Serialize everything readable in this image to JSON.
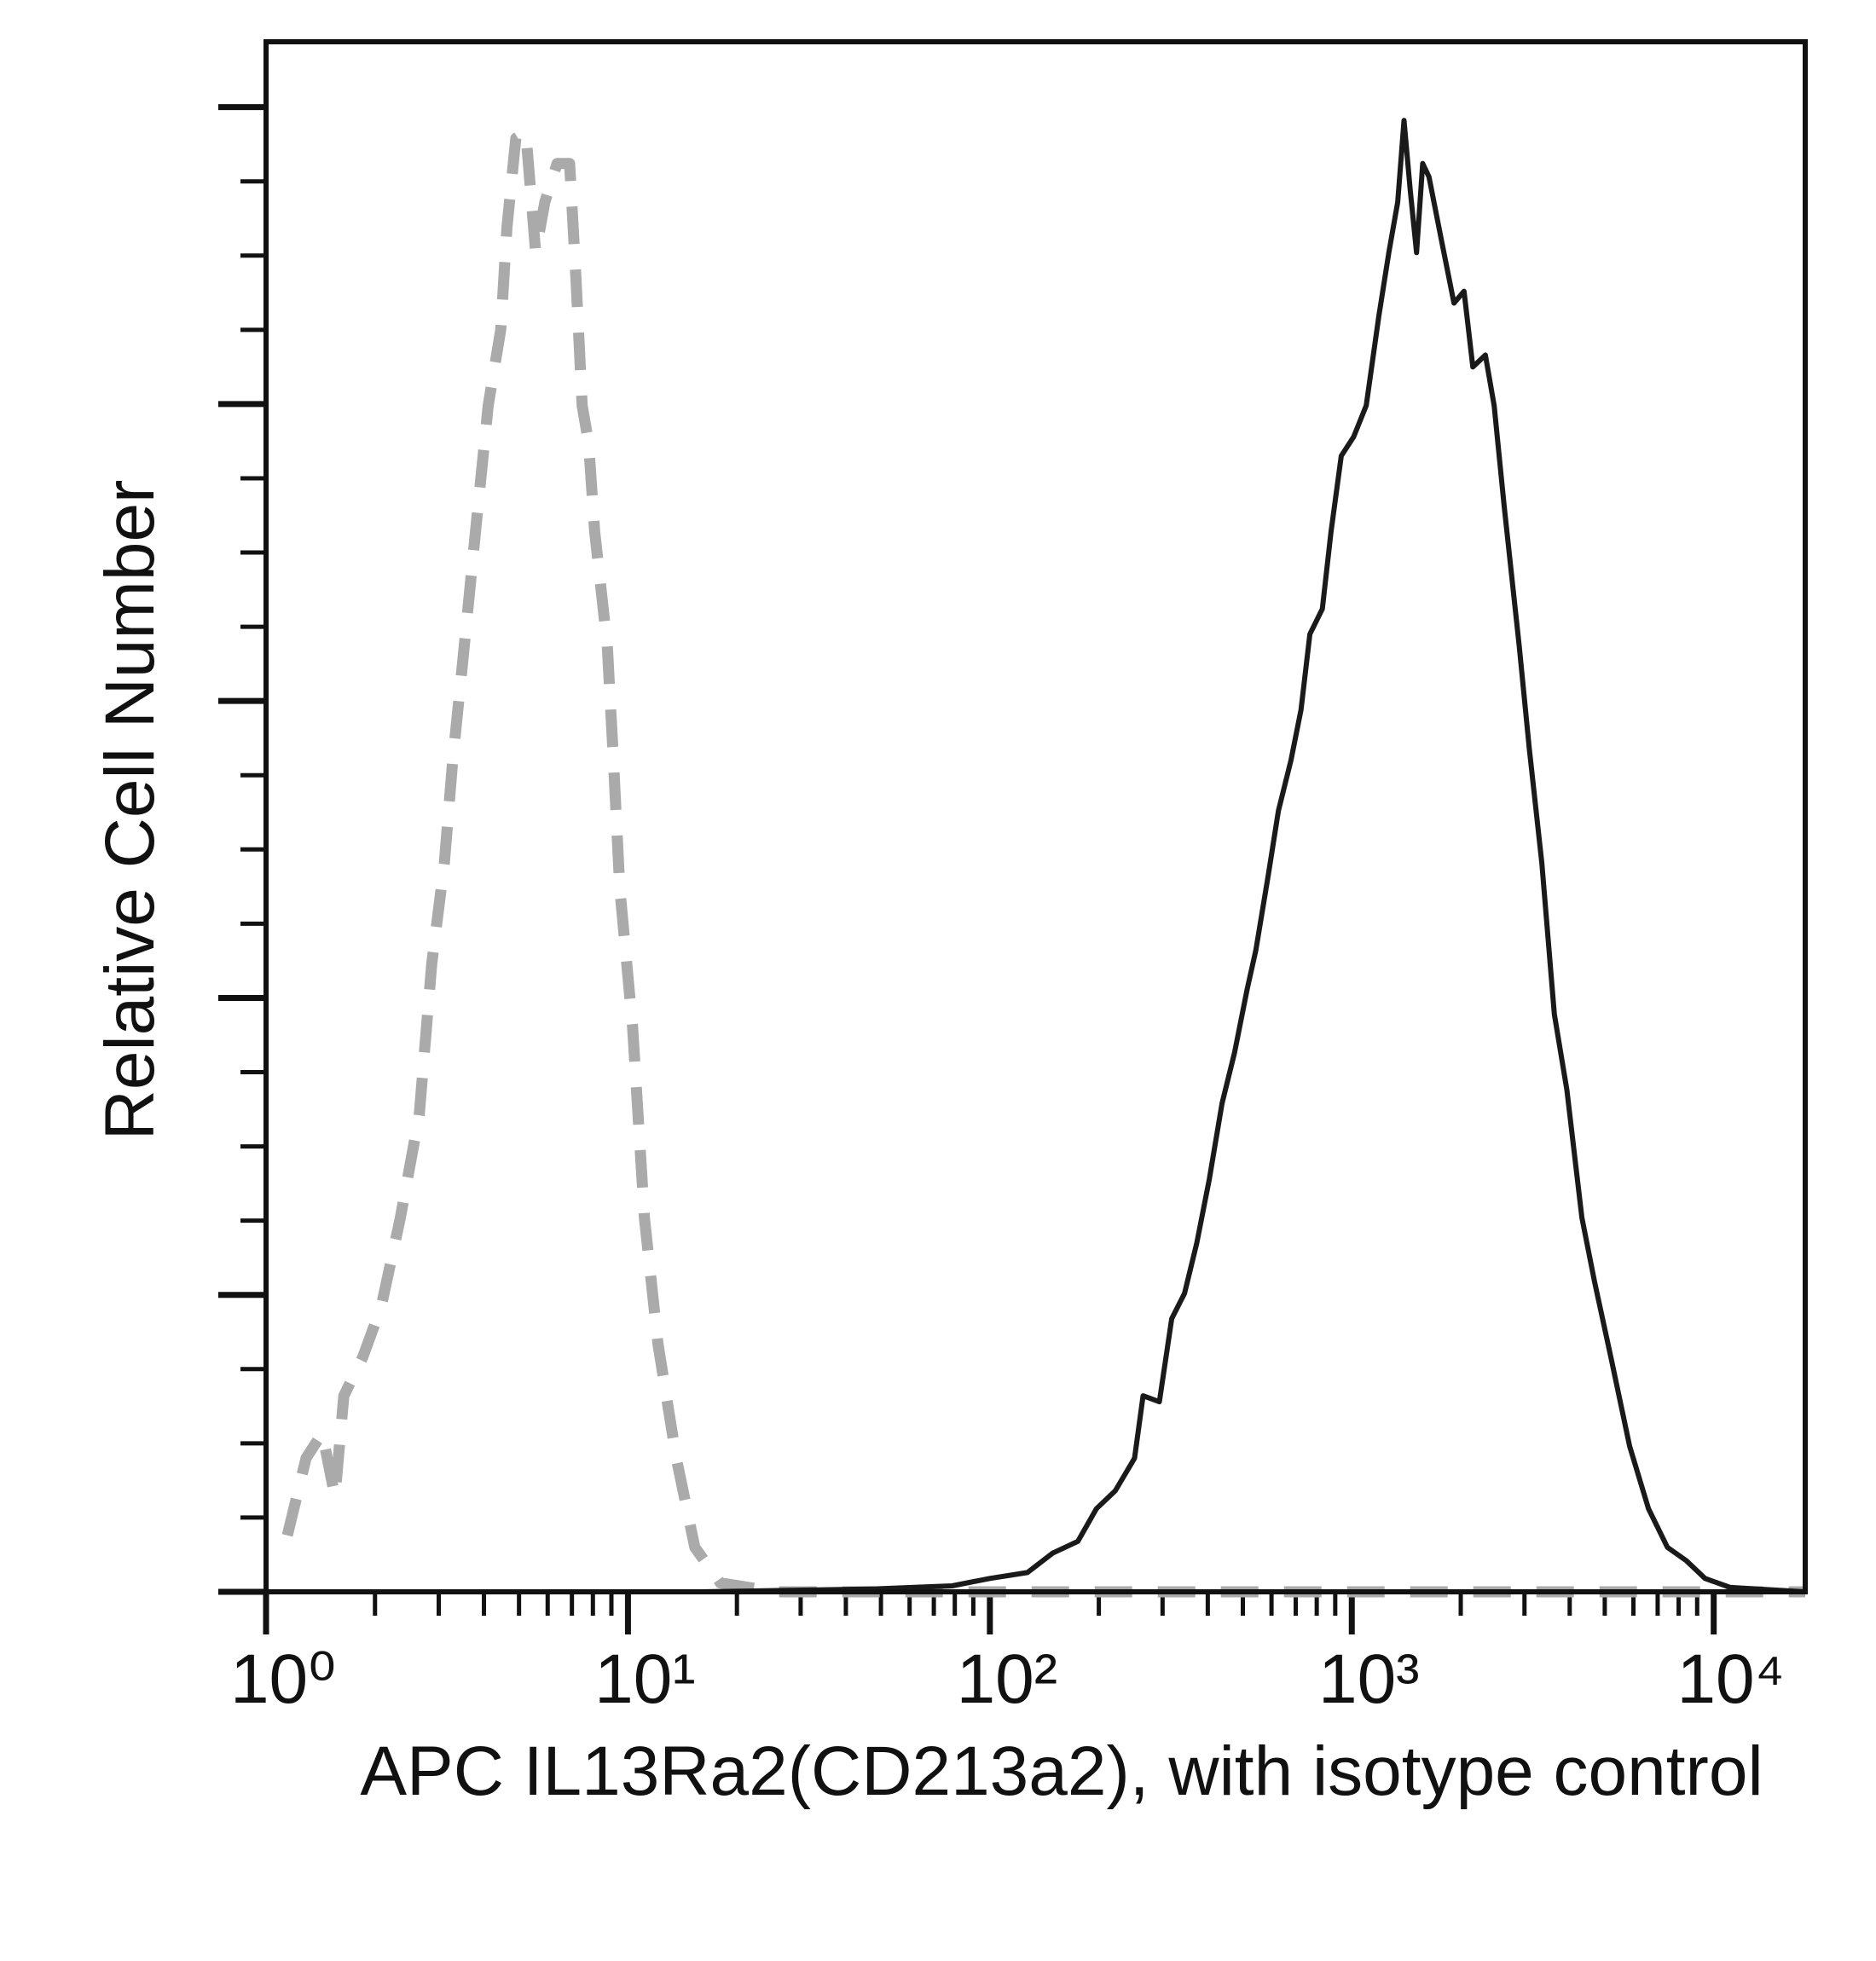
{
  "chart_data": {
    "type": "line",
    "x_label": "APC IL13Ra2(CD213a2), with isotype control",
    "y_label": "Relative Cell Number",
    "xscale": "log",
    "xlim": [
      1,
      17900
    ],
    "ylim": [
      0,
      104.4
    ],
    "xticks": [
      {
        "value": 1,
        "label": "10⁰"
      },
      {
        "value": 10,
        "label": "10¹"
      },
      {
        "value": 100,
        "label": "10²"
      },
      {
        "value": 1000,
        "label": "10³"
      },
      {
        "value": 10000,
        "label": "10⁴"
      }
    ],
    "xminorticks": [
      2,
      3,
      4,
      5,
      6,
      7,
      8,
      9,
      20,
      30,
      40,
      50,
      60,
      70,
      80,
      90,
      200,
      300,
      400,
      500,
      600,
      700,
      800,
      900,
      2000,
      3000,
      4000,
      5000,
      6000,
      7000,
      8000,
      9000
    ],
    "yticks": [
      0,
      20,
      40,
      60,
      80,
      100
    ],
    "yminorticks": [
      5,
      10,
      15,
      25,
      30,
      35,
      45,
      50,
      55,
      65,
      70,
      75,
      85,
      90,
      95
    ],
    "series": [
      {
        "color": "#aaaaaa",
        "dash": "dashed",
        "x": [
          1.145,
          1.29,
          1.43,
          1.55,
          1.64,
          1.85,
          2.08,
          2.35,
          2.65,
          2.87,
          3.11,
          3.28,
          3.5,
          3.79,
          4.11,
          4.45,
          4.63,
          4.9,
          5.22,
          5.56,
          5.89,
          6.37,
          6.9,
          7.18,
          7.47,
          7.78,
          8.09,
          8.77,
          9.12,
          9.49,
          10.3,
          11.1,
          12.1,
          13.6,
          15.3,
          18.0,
          25.7,
          17900
        ],
        "values": [
          3.8,
          9.0,
          10.7,
          6.4,
          13.2,
          15.8,
          19.2,
          25.2,
          32.1,
          42.3,
          49.1,
          56.0,
          62.8,
          71.4,
          79.9,
          85.0,
          91.9,
          97.9,
          98.3,
          90.2,
          93.6,
          96.2,
          96.2,
          88.5,
          79.9,
          77.4,
          71.4,
          63.7,
          56.0,
          47.4,
          38.0,
          25.2,
          16.7,
          9.0,
          3.0,
          0.6,
          0,
          0
        ]
      },
      {
        "color": "#1a1a1a",
        "dash": "solid",
        "x": [
          15.9,
          48.8,
          78.7,
          100,
          127,
          149,
          175,
          197,
          222,
          251,
          265,
          294,
          318,
          345,
          373,
          404,
          438,
          474,
          514,
          543,
          588,
          627,
          679,
          724,
          766,
          829,
          876,
          935,
          1012,
          1096,
          1187,
          1266,
          1339,
          1394,
          1450,
          1510,
          1570,
          1634,
          1770,
          1916,
          2043,
          2160,
          2339,
          2473,
          2637,
          2901,
          3093,
          3350,
          3628,
          3929,
          4323,
          4684,
          5199,
          5859,
          6605,
          7447,
          8396,
          9465,
          11100,
          17900
        ],
        "values": [
          0,
          0.2,
          0.4,
          0.9,
          1.3,
          2.6,
          3.4,
          5.6,
          6.8,
          9.0,
          13.2,
          12.8,
          18.4,
          20.1,
          23.5,
          27.8,
          32.9,
          36.3,
          40.6,
          43.2,
          48.3,
          52.6,
          56.0,
          59.4,
          64.5,
          66.2,
          71.4,
          76.5,
          77.8,
          79.9,
          85.9,
          90.2,
          93.6,
          99.1,
          94.4,
          90.2,
          96.2,
          95.3,
          91.0,
          86.8,
          87.6,
          82.5,
          83.3,
          79.9,
          73.1,
          63.7,
          56.8,
          49.1,
          38.9,
          33.8,
          25.2,
          20.9,
          15.8,
          9.8,
          5.6,
          3.0,
          2.1,
          0.9,
          0.3,
          0
        ]
      }
    ]
  }
}
